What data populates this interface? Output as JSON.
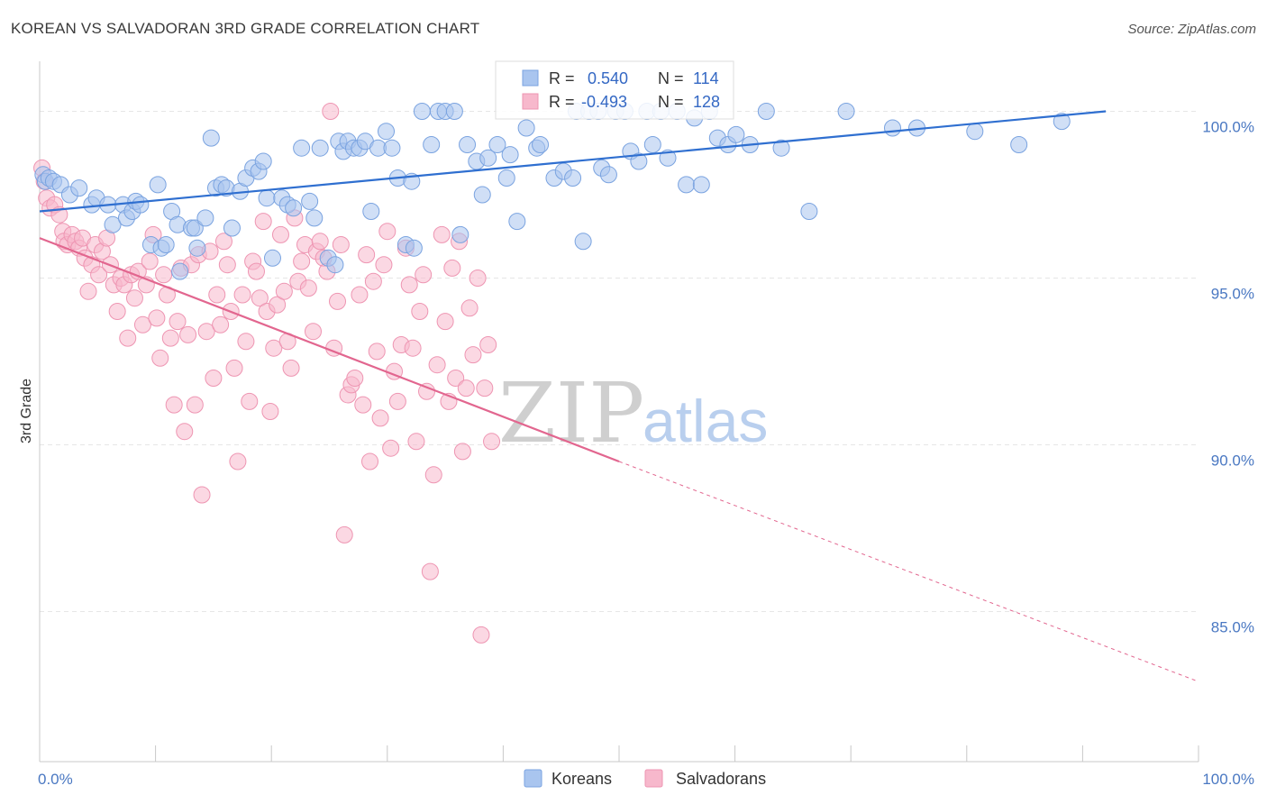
{
  "title": "KOREAN VS SALVADORAN 3RD GRADE CORRELATION CHART",
  "source": "Source: ZipAtlas.com",
  "watermark": {
    "zip": "ZIP",
    "atlas": "atlas"
  },
  "colors": {
    "korean_fill": "#a9c5ef",
    "korean_stroke": "#7aa3e0",
    "korean_line": "#2f6fd0",
    "salvadoran_fill": "#f7b8cc",
    "salvadoran_stroke": "#ee95b2",
    "salvadoran_line": "#e2668f",
    "grid": "#e6e6e6",
    "tick_label": "#4a78c2"
  },
  "legend_top": {
    "korean": {
      "r_label": "R =",
      "r_value": "0.540",
      "n_label": "N =",
      "n_value": "114"
    },
    "salvadoran": {
      "r_label": "R =",
      "r_value": "-0.493",
      "n_label": "N =",
      "n_value": "128"
    }
  },
  "chart_data": {
    "type": "scatter",
    "ylabel": "3rd Grade",
    "xlim": [
      0,
      100
    ],
    "ylim": [
      80.5,
      101.5
    ],
    "y_ticks": [
      {
        "value": 100,
        "label": "100.0%"
      },
      {
        "value": 95,
        "label": "95.0%"
      },
      {
        "value": 90,
        "label": "90.0%"
      },
      {
        "value": 85,
        "label": "85.0%"
      }
    ],
    "x_tick_labels": [
      {
        "value": 0,
        "label": "0.0%"
      },
      {
        "value": 100,
        "label": "100.0%"
      }
    ],
    "x_minor_ticks": [
      0,
      10,
      20,
      30,
      40,
      50,
      60,
      70,
      80,
      90,
      100
    ],
    "series": [
      {
        "name": "Koreans",
        "trend": {
          "x0": 0,
          "y0": 97.0,
          "x1": 92,
          "y1": 100.0,
          "dashed_to": null
        },
        "points": [
          [
            0.3,
            98.1
          ],
          [
            0.5,
            97.9
          ],
          [
            0.8,
            98.0
          ],
          [
            1.2,
            97.9
          ],
          [
            1.8,
            97.8
          ],
          [
            2.6,
            97.5
          ],
          [
            3.4,
            97.7
          ],
          [
            4.5,
            97.2
          ],
          [
            4.9,
            97.4
          ],
          [
            5.9,
            97.2
          ],
          [
            6.3,
            96.6
          ],
          [
            7.2,
            97.2
          ],
          [
            7.5,
            96.8
          ],
          [
            8.0,
            97.0
          ],
          [
            8.3,
            97.3
          ],
          [
            8.7,
            97.2
          ],
          [
            9.6,
            96.0
          ],
          [
            10.2,
            97.8
          ],
          [
            10.5,
            95.9
          ],
          [
            10.9,
            96.0
          ],
          [
            11.4,
            97.0
          ],
          [
            11.9,
            96.6
          ],
          [
            12.1,
            95.2
          ],
          [
            13.1,
            96.5
          ],
          [
            13.4,
            96.5
          ],
          [
            13.6,
            95.9
          ],
          [
            14.3,
            96.8
          ],
          [
            14.8,
            99.2
          ],
          [
            15.2,
            97.7
          ],
          [
            15.7,
            97.8
          ],
          [
            16.1,
            97.7
          ],
          [
            16.6,
            96.5
          ],
          [
            17.3,
            97.6
          ],
          [
            17.8,
            98.0
          ],
          [
            18.4,
            98.3
          ],
          [
            18.9,
            98.2
          ],
          [
            19.3,
            98.5
          ],
          [
            19.6,
            97.4
          ],
          [
            20.1,
            95.6
          ],
          [
            20.9,
            97.4
          ],
          [
            21.4,
            97.2
          ],
          [
            21.9,
            97.1
          ],
          [
            22.6,
            98.9
          ],
          [
            23.3,
            97.3
          ],
          [
            23.7,
            96.8
          ],
          [
            24.2,
            98.9
          ],
          [
            24.9,
            95.6
          ],
          [
            25.5,
            95.4
          ],
          [
            25.8,
            99.1
          ],
          [
            26.2,
            98.8
          ],
          [
            26.6,
            99.1
          ],
          [
            27.1,
            98.9
          ],
          [
            27.6,
            98.9
          ],
          [
            28.1,
            99.1
          ],
          [
            28.6,
            97.0
          ],
          [
            29.2,
            98.9
          ],
          [
            29.9,
            99.4
          ],
          [
            30.4,
            98.9
          ],
          [
            30.9,
            98.0
          ],
          [
            31.6,
            96.0
          ],
          [
            32.1,
            97.9
          ],
          [
            32.3,
            95.9
          ],
          [
            33.0,
            100.0
          ],
          [
            33.8,
            99.0
          ],
          [
            34.4,
            100.0
          ],
          [
            35.0,
            100.0
          ],
          [
            35.8,
            100.0
          ],
          [
            36.3,
            96.3
          ],
          [
            36.9,
            99.0
          ],
          [
            37.7,
            98.5
          ],
          [
            38.2,
            97.5
          ],
          [
            38.7,
            98.6
          ],
          [
            39.5,
            99.0
          ],
          [
            40.3,
            98.0
          ],
          [
            40.6,
            98.7
          ],
          [
            41.2,
            96.7
          ],
          [
            42.0,
            99.5
          ],
          [
            42.9,
            98.9
          ],
          [
            43.2,
            99.0
          ],
          [
            44.4,
            98.0
          ],
          [
            45.2,
            98.2
          ],
          [
            46.0,
            98.0
          ],
          [
            46.3,
            100.0
          ],
          [
            46.9,
            96.1
          ],
          [
            47.4,
            100.0
          ],
          [
            48.2,
            100.0
          ],
          [
            48.5,
            98.3
          ],
          [
            49.1,
            98.1
          ],
          [
            49.7,
            100.0
          ],
          [
            50.5,
            100.0
          ],
          [
            51.0,
            98.8
          ],
          [
            51.7,
            98.5
          ],
          [
            52.4,
            100.0
          ],
          [
            52.9,
            99.0
          ],
          [
            53.6,
            100.0
          ],
          [
            54.2,
            98.6
          ],
          [
            55.0,
            100.0
          ],
          [
            55.8,
            97.8
          ],
          [
            56.5,
            99.8
          ],
          [
            57.1,
            97.8
          ],
          [
            57.8,
            100.0
          ],
          [
            58.5,
            99.2
          ],
          [
            59.4,
            99.0
          ],
          [
            60.1,
            99.3
          ],
          [
            61.3,
            99.0
          ],
          [
            62.7,
            100.0
          ],
          [
            64.0,
            98.9
          ],
          [
            66.4,
            97.0
          ],
          [
            69.6,
            100.0
          ],
          [
            73.6,
            99.5
          ],
          [
            75.7,
            99.5
          ],
          [
            80.7,
            99.4
          ],
          [
            84.5,
            99.0
          ],
          [
            88.2,
            99.7
          ]
        ]
      },
      {
        "name": "Salvadorans",
        "trend": {
          "x0": 0,
          "y0": 96.2,
          "x1": 50,
          "y1": 89.5,
          "dashed_to": {
            "x": 100,
            "y": 82.9
          }
        },
        "points": [
          [
            0.2,
            98.3
          ],
          [
            0.4,
            97.9
          ],
          [
            0.6,
            97.4
          ],
          [
            0.9,
            97.1
          ],
          [
            1.3,
            97.2
          ],
          [
            1.7,
            96.9
          ],
          [
            2.0,
            96.4
          ],
          [
            2.1,
            96.1
          ],
          [
            2.4,
            96.0
          ],
          [
            2.8,
            96.3
          ],
          [
            3.1,
            96.1
          ],
          [
            3.4,
            95.9
          ],
          [
            3.7,
            96.2
          ],
          [
            3.9,
            95.6
          ],
          [
            4.2,
            94.6
          ],
          [
            4.5,
            95.4
          ],
          [
            4.8,
            96.0
          ],
          [
            5.1,
            95.1
          ],
          [
            5.4,
            95.8
          ],
          [
            5.8,
            96.2
          ],
          [
            6.1,
            95.4
          ],
          [
            6.4,
            94.8
          ],
          [
            6.7,
            94.0
          ],
          [
            7.0,
            95.0
          ],
          [
            7.3,
            94.8
          ],
          [
            7.6,
            93.2
          ],
          [
            7.9,
            95.1
          ],
          [
            8.2,
            94.4
          ],
          [
            8.5,
            95.2
          ],
          [
            8.9,
            93.6
          ],
          [
            9.2,
            94.8
          ],
          [
            9.5,
            95.5
          ],
          [
            9.8,
            96.3
          ],
          [
            10.1,
            93.8
          ],
          [
            10.4,
            92.6
          ],
          [
            10.7,
            95.1
          ],
          [
            11.0,
            94.5
          ],
          [
            11.3,
            93.2
          ],
          [
            11.6,
            91.2
          ],
          [
            11.9,
            93.7
          ],
          [
            12.2,
            95.3
          ],
          [
            12.5,
            90.4
          ],
          [
            12.8,
            93.3
          ],
          [
            13.1,
            95.4
          ],
          [
            13.4,
            91.2
          ],
          [
            13.7,
            95.7
          ],
          [
            14.0,
            88.5
          ],
          [
            14.4,
            93.4
          ],
          [
            14.7,
            95.8
          ],
          [
            15.0,
            92.0
          ],
          [
            15.3,
            94.5
          ],
          [
            15.6,
            93.6
          ],
          [
            15.9,
            96.1
          ],
          [
            16.2,
            95.4
          ],
          [
            16.5,
            94.0
          ],
          [
            16.8,
            92.3
          ],
          [
            17.1,
            89.5
          ],
          [
            17.5,
            94.5
          ],
          [
            17.8,
            93.1
          ],
          [
            18.1,
            91.3
          ],
          [
            18.4,
            95.5
          ],
          [
            18.7,
            95.2
          ],
          [
            19.0,
            94.4
          ],
          [
            19.3,
            96.7
          ],
          [
            19.6,
            94.0
          ],
          [
            19.9,
            91.0
          ],
          [
            20.2,
            92.9
          ],
          [
            20.5,
            94.2
          ],
          [
            20.8,
            96.3
          ],
          [
            21.1,
            94.6
          ],
          [
            21.4,
            93.1
          ],
          [
            21.7,
            92.3
          ],
          [
            22.0,
            96.8
          ],
          [
            22.3,
            94.9
          ],
          [
            22.6,
            95.5
          ],
          [
            22.9,
            96.0
          ],
          [
            23.2,
            94.7
          ],
          [
            23.6,
            93.4
          ],
          [
            23.9,
            95.8
          ],
          [
            24.2,
            96.1
          ],
          [
            24.5,
            95.6
          ],
          [
            24.8,
            95.2
          ],
          [
            25.1,
            100.0
          ],
          [
            25.4,
            92.9
          ],
          [
            25.7,
            94.3
          ],
          [
            26.0,
            96.0
          ],
          [
            26.3,
            87.3
          ],
          [
            26.6,
            91.5
          ],
          [
            26.9,
            91.8
          ],
          [
            27.2,
            92.0
          ],
          [
            27.6,
            94.5
          ],
          [
            27.9,
            91.2
          ],
          [
            28.2,
            95.7
          ],
          [
            28.5,
            89.5
          ],
          [
            28.8,
            94.9
          ],
          [
            29.1,
            92.8
          ],
          [
            29.4,
            90.8
          ],
          [
            29.7,
            95.4
          ],
          [
            30.0,
            96.4
          ],
          [
            30.3,
            89.9
          ],
          [
            30.6,
            92.2
          ],
          [
            30.9,
            91.3
          ],
          [
            31.2,
            93.0
          ],
          [
            31.6,
            95.9
          ],
          [
            31.9,
            94.8
          ],
          [
            32.2,
            92.9
          ],
          [
            32.5,
            90.1
          ],
          [
            32.8,
            94.0
          ],
          [
            33.1,
            95.1
          ],
          [
            33.4,
            91.6
          ],
          [
            33.7,
            86.2
          ],
          [
            34.0,
            89.1
          ],
          [
            34.3,
            92.4
          ],
          [
            34.7,
            96.3
          ],
          [
            35.0,
            93.7
          ],
          [
            35.3,
            91.3
          ],
          [
            35.6,
            95.3
          ],
          [
            35.9,
            92.0
          ],
          [
            36.2,
            96.1
          ],
          [
            36.5,
            89.8
          ],
          [
            36.8,
            91.7
          ],
          [
            37.1,
            94.1
          ],
          [
            37.4,
            92.7
          ],
          [
            37.8,
            95.0
          ],
          [
            38.1,
            84.3
          ],
          [
            38.4,
            91.7
          ],
          [
            38.7,
            93.0
          ],
          [
            39.0,
            90.1
          ]
        ]
      }
    ]
  },
  "legend_bottom": [
    {
      "label": "Koreans"
    },
    {
      "label": "Salvadorans"
    }
  ]
}
